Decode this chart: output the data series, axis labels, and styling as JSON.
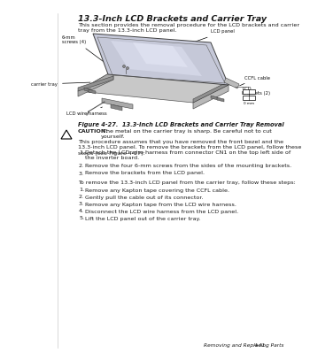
{
  "title": "13.3-Inch LCD Brackets and Carrier Tray",
  "intro_text": "This section provides the removal procedure for the LCD brackets and carrier\ntray from the 13.3-inch LCD panel.",
  "figure_caption": "Figure 4-27.  13.3-Inch LCD Brackets and Carrier Tray Removal",
  "caution_bold": "CAUTION:",
  "caution_rest": " The metal on the carrier tray is sharp. Be careful not to cut\nyourself.",
  "body_text": "This procedure assumes that you have removed the front bezel and the\n13.3-inch LCD panel. To remove the brackets from the LCD panel, follow these\nsteps (see Figure 4-27):",
  "steps1": [
    "Detach the LCD wire harness from connector CN1 on the top left side of\nthe inverter board.",
    "Remove the four 6-mm screws from the sides of the mounting brackets.",
    "Remove the brackets from the LCD panel."
  ],
  "steps2_intro": "To remove the 13.3-inch LCD panel from the carrier tray, follow these steps:",
  "steps2": [
    "Remove any Kapton tape covering the CCFL cable.",
    "Gently pull the cable out of its connector.",
    "Remove any Kapton tape from the LCD wire harness.",
    "Disconnect the LCD wire harness from the LCD panel.",
    "Lift the LCD panel out of the carrier tray."
  ],
  "footer_left": "Removing and Replacing Parts",
  "footer_right": "4-41",
  "lbl_screws": "6-mm\nscrews (4)",
  "lbl_lcd_panel": "LCD panel",
  "lbl_ccfl": "CCFL cable",
  "lbl_brackets": "LCD\nbrackets (2)",
  "lbl_carrier": "carrier tray",
  "lbl_harness": "LCD wire harness",
  "bg_color": "#ffffff",
  "text_color": "#1a1a1a",
  "gray_light": "#d0d0d0",
  "gray_mid": "#a0a0a0",
  "gray_dark": "#707070"
}
